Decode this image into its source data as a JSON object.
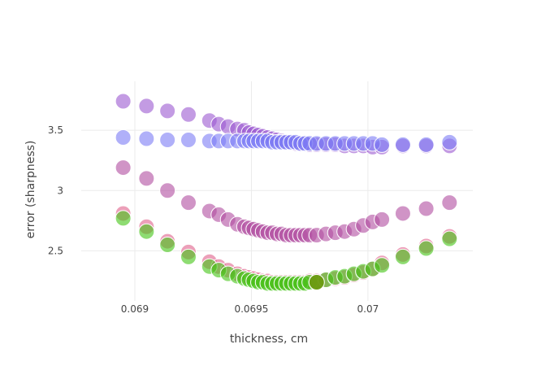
{
  "chart_data": {
    "type": "scatter",
    "xlabel": "thickness, cm",
    "ylabel": "error (sharpness)",
    "xlim": [
      0.06877,
      0.07045
    ],
    "ylim": [
      2.085,
      3.905
    ],
    "grid": true,
    "x_ticks": [
      0.069,
      0.0695,
      0.07
    ],
    "x_tick_labels": [
      "0.069",
      "0.0695",
      "0.07"
    ],
    "y_ticks": [
      2.5,
      3,
      3.5
    ],
    "y_tick_labels": [
      "2.5",
      "3",
      "3.5"
    ],
    "x": [
      0.06895,
      0.06905,
      0.06914,
      0.06923,
      0.06932,
      0.06936,
      0.0694,
      0.06944,
      0.06947,
      0.06949,
      0.06951,
      0.06953,
      0.06955,
      0.06957,
      0.06959,
      0.06961,
      0.06963,
      0.06965,
      0.06967,
      0.06969,
      0.06971,
      0.06973,
      0.06975,
      0.06978,
      0.06982,
      0.06986,
      0.0699,
      0.06994,
      0.06998,
      0.07002,
      0.07006,
      0.07015,
      0.07025,
      0.07035
    ],
    "series": [
      {
        "color": "#9b59d0",
        "y": [
          3.74,
          3.7,
          3.66,
          3.63,
          3.58,
          3.55,
          3.53,
          3.51,
          3.5,
          3.48,
          3.47,
          3.46,
          3.45,
          3.44,
          3.43,
          3.42,
          3.41,
          3.4,
          3.4,
          3.39,
          3.39,
          3.39,
          3.38,
          3.38,
          3.38,
          3.38,
          3.37,
          3.37,
          3.37,
          3.36,
          3.36,
          3.37,
          3.37,
          3.37
        ]
      },
      {
        "color": "#7b7cf5",
        "y": [
          3.44,
          3.43,
          3.42,
          3.42,
          3.41,
          3.41,
          3.41,
          3.41,
          3.41,
          3.41,
          3.41,
          3.41,
          3.41,
          3.41,
          3.4,
          3.4,
          3.4,
          3.4,
          3.4,
          3.4,
          3.39,
          3.39,
          3.39,
          3.39,
          3.39,
          3.39,
          3.39,
          3.39,
          3.39,
          3.39,
          3.38,
          3.38,
          3.38,
          3.4
        ]
      },
      {
        "color": "#b04da0",
        "y": [
          3.19,
          3.1,
          3.0,
          2.9,
          2.83,
          2.8,
          2.76,
          2.72,
          2.7,
          2.69,
          2.68,
          2.67,
          2.66,
          2.65,
          2.65,
          2.64,
          2.64,
          2.63,
          2.63,
          2.63,
          2.63,
          2.63,
          2.63,
          2.63,
          2.64,
          2.65,
          2.66,
          2.68,
          2.71,
          2.74,
          2.76,
          2.81,
          2.85,
          2.9
        ]
      },
      {
        "color": "#e0608a",
        "y": [
          2.81,
          2.7,
          2.58,
          2.49,
          2.41,
          2.37,
          2.34,
          2.31,
          2.29,
          2.28,
          2.27,
          2.26,
          2.25,
          2.25,
          2.24,
          2.24,
          2.24,
          2.24,
          2.24,
          2.24,
          2.24,
          2.24,
          2.25,
          2.25,
          2.26,
          2.27,
          2.28,
          2.3,
          2.32,
          2.35,
          2.4,
          2.47,
          2.54,
          2.62
        ]
      },
      {
        "color": "#43c414",
        "y": [
          2.77,
          2.66,
          2.55,
          2.45,
          2.37,
          2.34,
          2.31,
          2.29,
          2.27,
          2.26,
          2.25,
          2.24,
          2.24,
          2.23,
          2.23,
          2.23,
          2.23,
          2.23,
          2.23,
          2.23,
          2.23,
          2.23,
          2.24,
          2.24,
          2.26,
          2.28,
          2.29,
          2.31,
          2.33,
          2.35,
          2.38,
          2.45,
          2.52,
          2.6
        ]
      }
    ],
    "highlight": {
      "x": 0.06978,
      "y": 2.24,
      "color": "#6d9a12"
    }
  }
}
